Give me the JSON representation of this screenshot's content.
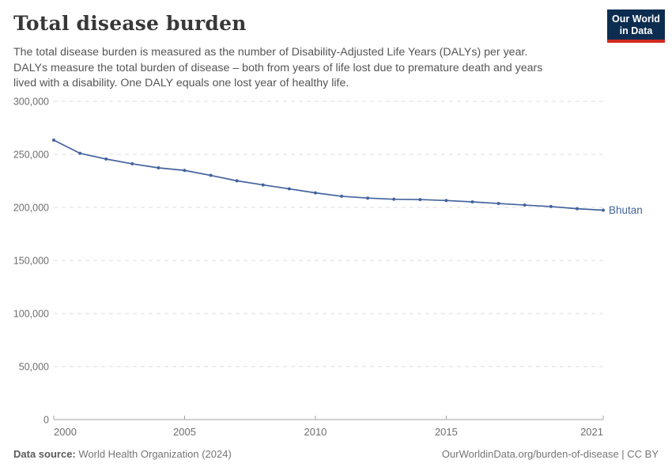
{
  "header": {
    "title": "Total disease burden",
    "subtitle_lines": [
      "The total disease burden is measured as the number of Disability-Adjusted Life Years (DALYs) per year.",
      "DALYs measure the total burden of disease – both from years of life lost due to premature death and years",
      "lived with a disability. One DALY equals one lost year of healthy life."
    ],
    "logo": {
      "line1": "Our World",
      "line2": "in Data"
    }
  },
  "chart_data": {
    "type": "line",
    "title": "Total disease burden",
    "x": [
      2000,
      2001,
      2002,
      2003,
      2004,
      2005,
      2006,
      2007,
      2008,
      2009,
      2010,
      2011,
      2012,
      2013,
      2014,
      2015,
      2016,
      2017,
      2018,
      2019,
      2020,
      2021
    ],
    "series": [
      {
        "name": "Bhutan",
        "color": "#44639e",
        "values": [
          263400,
          251000,
          245600,
          241100,
          237300,
          234900,
          230200,
          225100,
          221200,
          217500,
          213700,
          210500,
          208800,
          207700,
          207400,
          206500,
          205200,
          203700,
          202200,
          200800,
          198800,
          197400
        ]
      }
    ],
    "xlabel": "",
    "ylabel": "",
    "ylim": [
      0,
      300000
    ],
    "xlim": [
      2000,
      2021
    ],
    "yticks": [
      0,
      50000,
      100000,
      150000,
      200000,
      250000,
      300000
    ],
    "ytick_labels": [
      "0",
      "50,000",
      "100,000",
      "150,000",
      "200,000",
      "250,000",
      "300,000"
    ],
    "xticks": [
      2000,
      2005,
      2010,
      2015,
      2021
    ],
    "xtick_labels": [
      "2000",
      "2005",
      "2010",
      "2015",
      "2021"
    ],
    "grid": "horizontal-dashed",
    "legend_position": "end-of-line",
    "marker": "dot"
  },
  "footer": {
    "source_label": "Data source:",
    "source_text": " World Health Organization (2024)",
    "license_text": "OurWorldinData.org/burden-of-disease | CC BY"
  },
  "colors": {
    "line": "#44639e",
    "grid": "#dcdcdc",
    "axis": "#a3a3a3",
    "title": "#383838",
    "subtitle": "#555555",
    "logo_bg": "#0d2d50",
    "logo_stripe": "#d0291f"
  }
}
